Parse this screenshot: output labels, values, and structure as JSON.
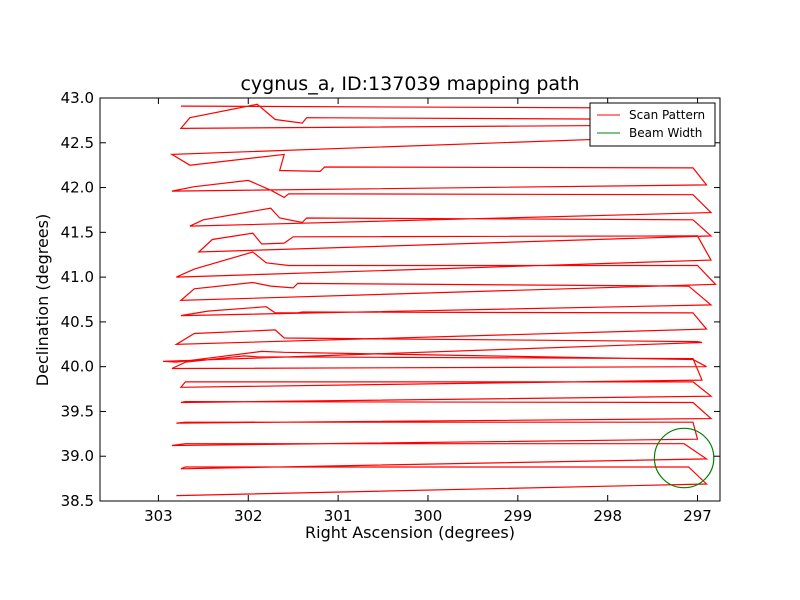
{
  "chart_data": {
    "type": "line",
    "title": "cygnus_a, ID:137039 mapping path",
    "xlabel": "Right Ascension (degrees)",
    "ylabel": "Declination (degrees)",
    "xlim": [
      303.65,
      296.75
    ],
    "ylim": [
      38.5,
      43.0
    ],
    "xticks": [
      303,
      302,
      301,
      300,
      299,
      298,
      297
    ],
    "yticks": [
      38.5,
      39.0,
      39.5,
      40.0,
      40.5,
      41.0,
      41.5,
      42.0,
      42.5,
      43.0
    ],
    "xtick_labels": [
      "303",
      "302",
      "301",
      "300",
      "299",
      "298",
      "297"
    ],
    "ytick_labels": [
      "38.5",
      "39.0",
      "39.5",
      "40.0",
      "40.5",
      "41.0",
      "41.5",
      "42.0",
      "42.5",
      "43.0"
    ],
    "grid": false,
    "legend": {
      "placement": "upper right",
      "entries": [
        {
          "label": "Scan Pattern",
          "color": "#ff0000"
        },
        {
          "label": "Beam Width",
          "color": "#008000"
        }
      ]
    },
    "series": [
      {
        "name": "Scan Pattern",
        "color": "#ff0000",
        "x": [
          302.75,
          297.9,
          297.05,
          302.75,
          302.65,
          301.9,
          301.7,
          301.4,
          301.35,
          297.05,
          296.95,
          302.85,
          302.65,
          301.6,
          301.65,
          301.2,
          301.15,
          297.05,
          296.9,
          302.85,
          302.6,
          302.0,
          301.75,
          301.6,
          301.55,
          297.05,
          296.85,
          302.65,
          302.5,
          301.75,
          301.65,
          301.4,
          301.35,
          297.05,
          296.85,
          302.55,
          302.4,
          301.95,
          301.85,
          301.6,
          301.5,
          297.0,
          296.85,
          302.8,
          302.6,
          301.95,
          301.8,
          301.55,
          301.45,
          297.0,
          296.8,
          302.75,
          302.6,
          301.95,
          301.75,
          301.5,
          301.45,
          297.1,
          296.85,
          302.75,
          302.45,
          301.8,
          301.7,
          301.45,
          301.4,
          297.05,
          296.9,
          302.8,
          302.6,
          301.7,
          301.6,
          297.0,
          296.95,
          302.95,
          302.8,
          301.85,
          301.6,
          297.05,
          296.9,
          302.85,
          302.7,
          302.05,
          301.9,
          297.05,
          296.95,
          302.75,
          302.7,
          297.05,
          296.85,
          302.75,
          302.7,
          297.05,
          296.85,
          302.8,
          302.7,
          297.05,
          297.0,
          302.85,
          302.7,
          297.15,
          296.9,
          302.75,
          302.7,
          297.1,
          296.9,
          302.8
        ],
        "y": [
          42.91,
          42.89,
          42.7,
          42.66,
          42.78,
          42.93,
          42.76,
          42.72,
          42.78,
          42.76,
          42.58,
          42.37,
          42.25,
          42.37,
          42.19,
          42.18,
          42.23,
          42.22,
          42.03,
          41.96,
          42.01,
          42.08,
          41.97,
          41.89,
          41.93,
          41.92,
          41.72,
          41.57,
          41.64,
          41.77,
          41.66,
          41.61,
          41.66,
          41.64,
          41.46,
          41.28,
          41.42,
          41.49,
          41.37,
          41.38,
          41.45,
          41.46,
          41.19,
          41.0,
          41.09,
          41.28,
          41.16,
          41.13,
          41.13,
          41.13,
          40.92,
          40.74,
          40.87,
          40.94,
          40.9,
          40.88,
          40.93,
          40.9,
          40.69,
          40.57,
          40.62,
          40.67,
          40.6,
          40.6,
          40.61,
          40.6,
          40.42,
          40.25,
          40.37,
          40.41,
          40.32,
          40.28,
          40.27,
          40.06,
          40.05,
          40.17,
          40.16,
          40.08,
          40.0,
          39.98,
          40.05,
          40.12,
          40.11,
          40.09,
          39.85,
          39.77,
          39.83,
          39.83,
          39.67,
          39.6,
          39.61,
          39.6,
          39.42,
          39.37,
          39.38,
          39.38,
          39.19,
          39.12,
          39.14,
          39.14,
          38.97,
          38.86,
          38.88,
          38.88,
          38.69,
          38.56
        ]
      }
    ],
    "beam": {
      "name": "Beam Width",
      "color": "#008000",
      "center_ra": 297.15,
      "center_dec": 38.98,
      "radius_deg": 0.33
    }
  }
}
